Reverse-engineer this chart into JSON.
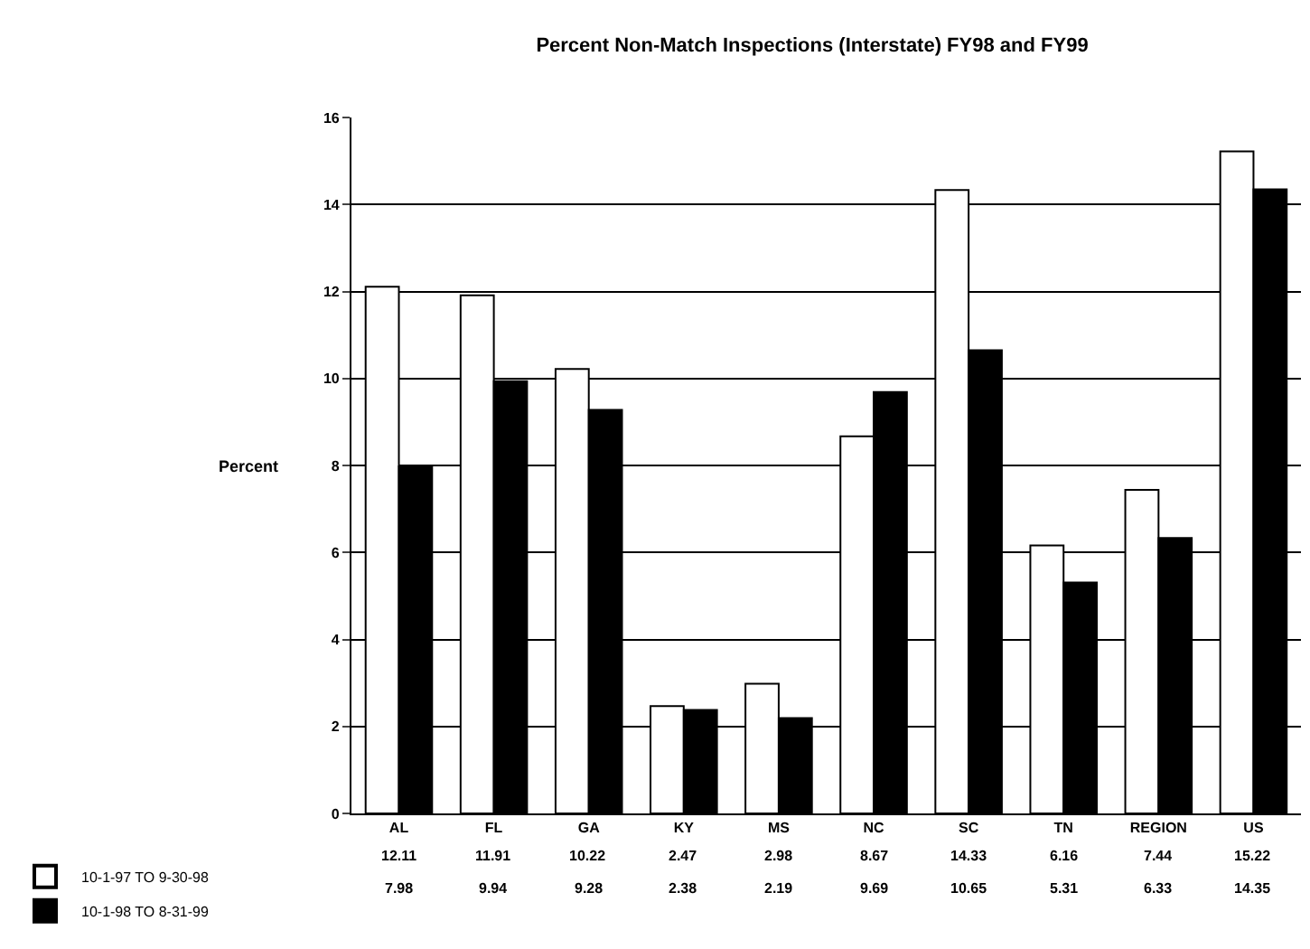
{
  "chart_data": {
    "type": "bar",
    "title": "Percent Non-Match Inspections (Interstate) FY98 and FY99",
    "ylabel": "Percent",
    "categories": [
      "AL",
      "FL",
      "GA",
      "KY",
      "MS",
      "NC",
      "SC",
      "TN",
      "REGION",
      "US"
    ],
    "series": [
      {
        "name": "10-1-97 TO 9-30-98",
        "color": "#ffffff",
        "values": [
          12.11,
          11.91,
          10.22,
          2.47,
          2.98,
          8.67,
          14.33,
          6.16,
          7.44,
          15.22
        ]
      },
      {
        "name": "10-1-98 TO 8-31-99",
        "color": "#000000",
        "values": [
          7.98,
          9.94,
          9.28,
          2.38,
          2.19,
          9.69,
          10.65,
          5.31,
          6.33,
          14.35
        ]
      }
    ],
    "ylim": [
      0,
      16
    ],
    "yticks": [
      0,
      2,
      4,
      6,
      8,
      10,
      12,
      14,
      16
    ],
    "grid": "y",
    "legend": "bottom left",
    "data_labels": true
  }
}
